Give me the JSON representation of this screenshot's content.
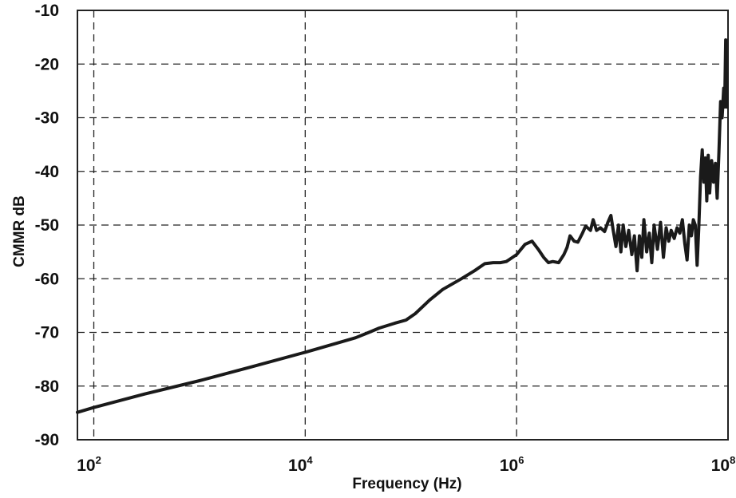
{
  "chart_data": {
    "type": "line",
    "title": "",
    "xlabel": "Frequency (Hz)",
    "ylabel": "CMMR dB",
    "x_scale": "log",
    "xlim": [
      70,
      100000000
    ],
    "ylim": [
      -90,
      -10
    ],
    "grid": true,
    "x_ticks": [
      {
        "value": 100,
        "base": "10",
        "exp": "2"
      },
      {
        "value": 10000,
        "base": "10",
        "exp": "4"
      },
      {
        "value": 1000000,
        "base": "10",
        "exp": "6"
      },
      {
        "value": 100000000,
        "base": "10",
        "exp": "8"
      }
    ],
    "y_ticks": [
      "-10",
      "-20",
      "-30",
      "-40",
      "-50",
      "-60",
      "-70",
      "-80",
      "-90"
    ],
    "series": [
      {
        "color": "#1a1a1a",
        "points": [
          [
            70,
            -84.9
          ],
          [
            100,
            -84.0
          ],
          [
            300,
            -81.5
          ],
          [
            1000,
            -79.0
          ],
          [
            3000,
            -76.5
          ],
          [
            10000,
            -73.7
          ],
          [
            20000,
            -72.0
          ],
          [
            30000,
            -71.0
          ],
          [
            40000,
            -70.0
          ],
          [
            50000,
            -69.2
          ],
          [
            70000,
            -68.3
          ],
          [
            90000,
            -67.7
          ],
          [
            110000,
            -66.5
          ],
          [
            150000,
            -64.0
          ],
          [
            200000,
            -62.0
          ],
          [
            300000,
            -60.0
          ],
          [
            400000,
            -58.5
          ],
          [
            500000,
            -57.2
          ],
          [
            600000,
            -57.0
          ],
          [
            700000,
            -57.0
          ],
          [
            800000,
            -56.8
          ],
          [
            1000000,
            -55.5
          ],
          [
            1200000,
            -53.6
          ],
          [
            1400000,
            -53.0
          ],
          [
            1600000,
            -54.5
          ],
          [
            1800000,
            -56.0
          ],
          [
            2000000,
            -57.0
          ],
          [
            2200000,
            -56.8
          ],
          [
            2500000,
            -57.0
          ],
          [
            2800000,
            -55.5
          ],
          [
            3000000,
            -54.2
          ],
          [
            3200000,
            -52.0
          ],
          [
            3500000,
            -53.0
          ],
          [
            3800000,
            -53.2
          ],
          [
            4200000,
            -51.5
          ],
          [
            4500000,
            -50.2
          ],
          [
            5000000,
            -51.0
          ],
          [
            5300000,
            -49.0
          ],
          [
            5700000,
            -51.0
          ],
          [
            6200000,
            -50.5
          ],
          [
            6800000,
            -51.2
          ],
          [
            7300000,
            -49.5
          ],
          [
            7800000,
            -48.2
          ],
          [
            8200000,
            -51.0
          ],
          [
            8700000,
            -54.0
          ],
          [
            9200000,
            -50.0
          ],
          [
            9700000,
            -55.0
          ],
          [
            10200000,
            -50.0
          ],
          [
            10800000,
            -54.0
          ],
          [
            11500000,
            -51.0
          ],
          [
            12300000,
            -55.5
          ],
          [
            13000000,
            -52.0
          ],
          [
            13800000,
            -58.5
          ],
          [
            14500000,
            -52.0
          ],
          [
            15300000,
            -56.0
          ],
          [
            16000000,
            -49.0
          ],
          [
            17000000,
            -55.0
          ],
          [
            18000000,
            -51.5
          ],
          [
            19000000,
            -57.0
          ],
          [
            20000000,
            -50.0
          ],
          [
            21500000,
            -54.5
          ],
          [
            23000000,
            -49.5
          ],
          [
            24500000,
            -56.0
          ],
          [
            26000000,
            -50.5
          ],
          [
            27500000,
            -53.0
          ],
          [
            29000000,
            -51.0
          ],
          [
            31000000,
            -52.5
          ],
          [
            33000000,
            -50.5
          ],
          [
            35000000,
            -51.5
          ],
          [
            37000000,
            -49.0
          ],
          [
            39000000,
            -53.5
          ],
          [
            41000000,
            -56.5
          ],
          [
            43000000,
            -50.0
          ],
          [
            45000000,
            -52.0
          ],
          [
            47000000,
            -49.0
          ],
          [
            49000000,
            -50.0
          ],
          [
            51000000,
            -57.5
          ],
          [
            53000000,
            -50.0
          ],
          [
            55000000,
            -41.0
          ],
          [
            57000000,
            -36.0
          ],
          [
            59000000,
            -42.0
          ],
          [
            61000000,
            -37.5
          ],
          [
            63000000,
            -45.5
          ],
          [
            65000000,
            -37.0
          ],
          [
            67000000,
            -44.0
          ],
          [
            70000000,
            -38.0
          ],
          [
            73000000,
            -42.0
          ],
          [
            76000000,
            -38.5
          ],
          [
            79000000,
            -45.0
          ],
          [
            82000000,
            -36.5
          ],
          [
            85000000,
            -27.0
          ],
          [
            88000000,
            -30.0
          ],
          [
            91000000,
            -24.5
          ],
          [
            93000000,
            -28.0
          ],
          [
            95000000,
            -15.5
          ],
          [
            97000000,
            -28.0
          ]
        ]
      }
    ]
  }
}
